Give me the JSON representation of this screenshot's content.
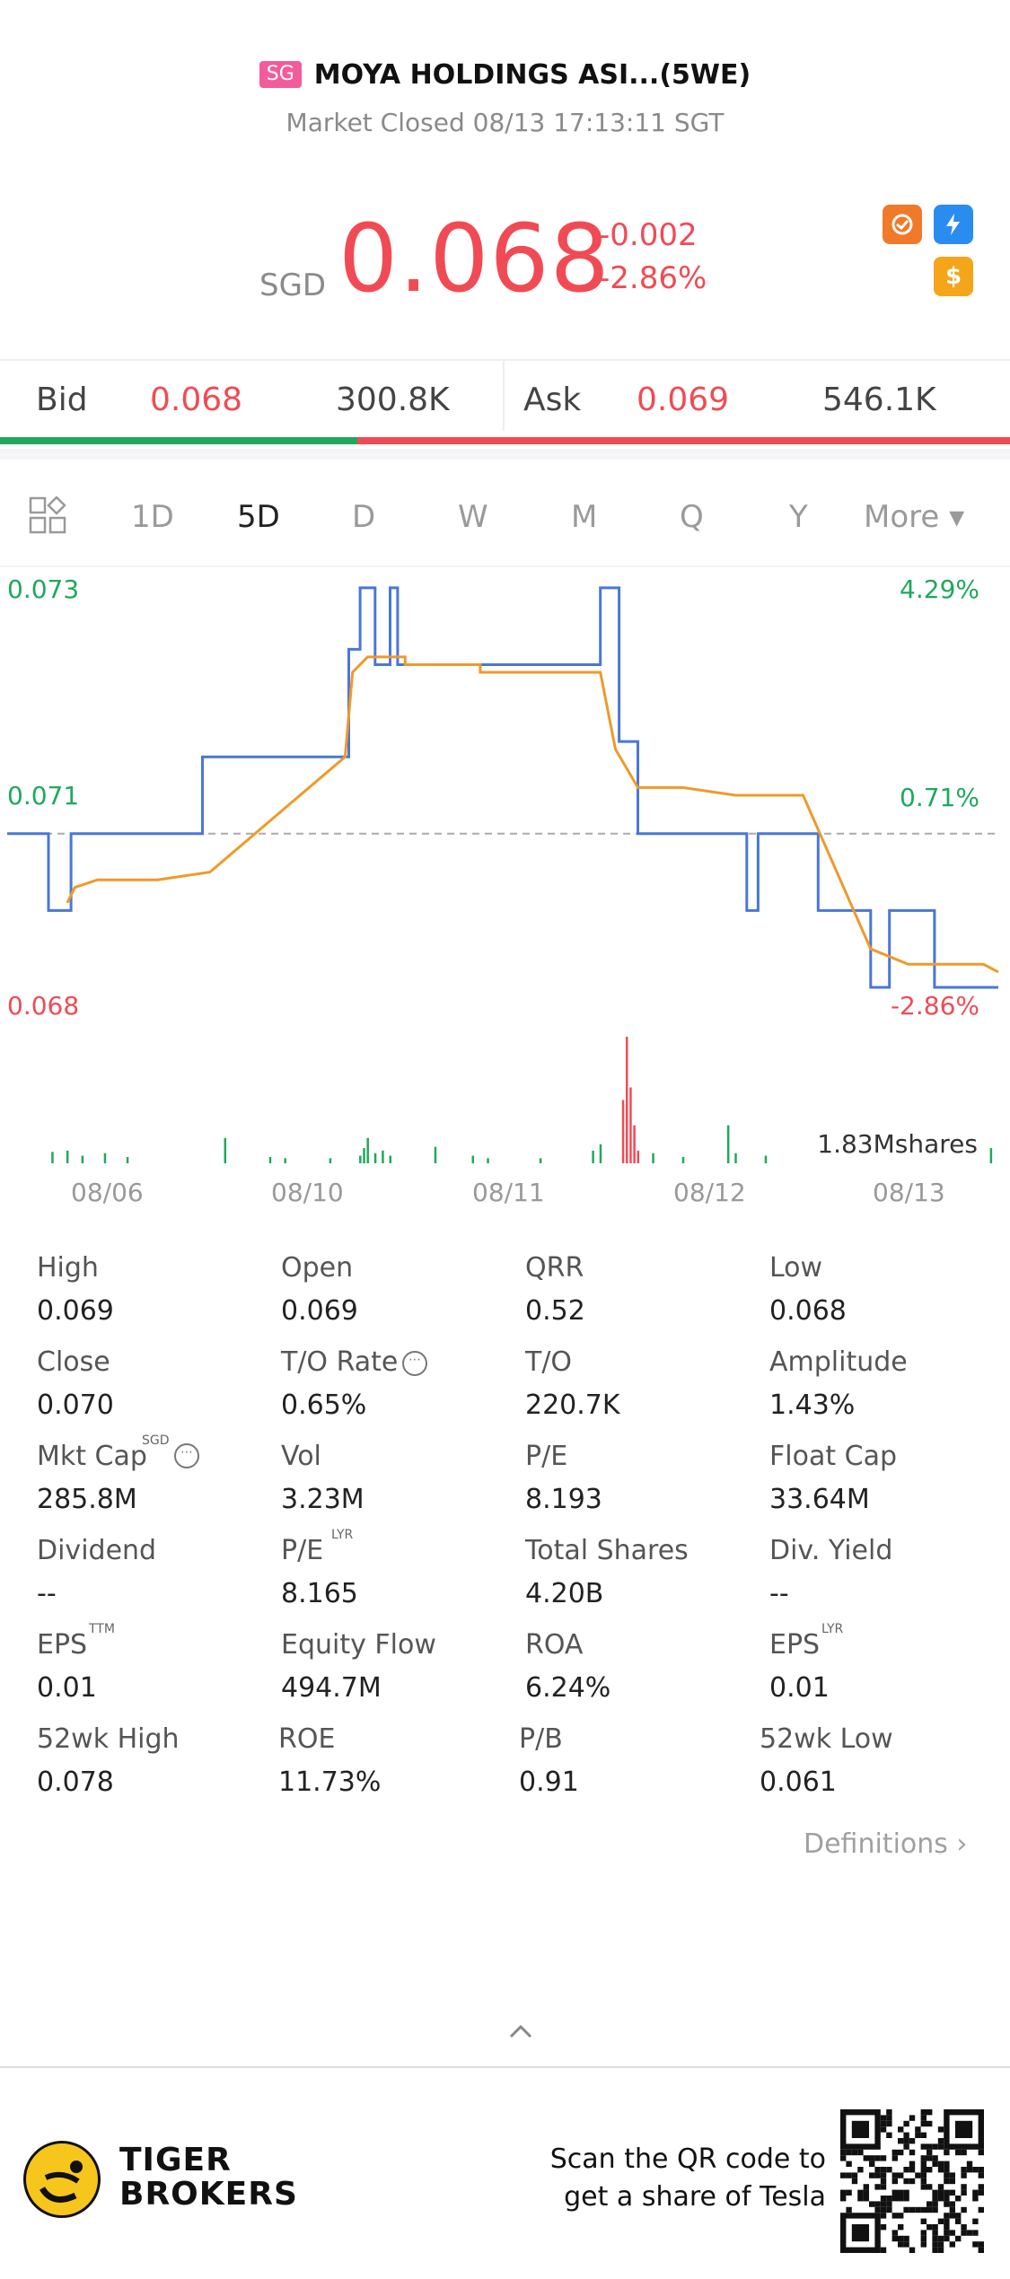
{
  "header": {
    "badge": "SG",
    "title": "MOYA HOLDINGS ASI...(5WE)",
    "status": "Market Closed 08/13 17:13:11 SGT"
  },
  "quote": {
    "currency": "SGD",
    "price": "0.068",
    "change": "-0.002",
    "change_pct": "-2.86%",
    "icons": [
      "sync-icon",
      "lightning-level1-icon",
      "dollar-icon"
    ]
  },
  "bidask": {
    "bid_label": "Bid",
    "bid_price": "0.068",
    "bid_size": "300.8K",
    "ask_label": "Ask",
    "ask_price": "0.069",
    "ask_size": "546.1K",
    "bid_share": 0.354
  },
  "tabs": [
    "1D",
    "5D",
    "D",
    "W",
    "M",
    "Q",
    "Y",
    "More ▾"
  ],
  "active_tab": "5D",
  "chart_data": {
    "type": "line",
    "y_labels": {
      "top": "0.073",
      "mid": "0.071",
      "bottom": "0.068"
    },
    "pct_labels": {
      "top": "4.29%",
      "mid": "0.71%",
      "bottom": "-2.86%"
    },
    "ylim": [
      0.068,
      0.073
    ],
    "prev_close": 0.07,
    "x_ticks": [
      "08/06",
      "08/10",
      "08/11",
      "08/12",
      "08/13"
    ],
    "volume_label": "1.83Mshares",
    "series": [
      {
        "color": "#4a76d8",
        "points": [
          [
            0,
            0.07
          ],
          [
            0.055,
            0.07
          ],
          [
            0.055,
            0.069
          ],
          [
            0.085,
            0.069
          ],
          [
            0.085,
            0.07
          ],
          [
            0.26,
            0.07
          ],
          [
            0.26,
            0.071
          ],
          [
            0.455,
            0.071
          ],
          [
            0.455,
            0.0724
          ],
          [
            0.47,
            0.0724
          ],
          [
            0.47,
            0.0732
          ],
          [
            0.49,
            0.0732
          ],
          [
            0.49,
            0.0722
          ],
          [
            0.51,
            0.0722
          ],
          [
            0.51,
            0.0732
          ],
          [
            0.52,
            0.0732
          ],
          [
            0.52,
            0.0722
          ],
          [
            0.79,
            0.0722
          ],
          [
            0.79,
            0.0732
          ],
          [
            0.815,
            0.0732
          ],
          [
            0.815,
            0.0712
          ],
          [
            0.84,
            0.0712
          ],
          [
            0.84,
            0.07
          ],
          [
            0.985,
            0.07
          ],
          [
            0.985,
            0.069
          ],
          [
            1.0,
            0.069
          ],
          [
            1.0,
            0.07
          ],
          [
            1.08,
            0.07
          ],
          [
            1.08,
            0.069
          ],
          [
            1.15,
            0.069
          ],
          [
            1.15,
            0.068
          ],
          [
            1.175,
            0.068
          ],
          [
            1.175,
            0.069
          ],
          [
            1.235,
            0.069
          ],
          [
            1.235,
            0.068
          ],
          [
            1.32,
            0.068
          ]
        ]
      },
      {
        "color": "#ee9a2a",
        "points": [
          [
            0.08,
            0.0691
          ],
          [
            0.09,
            0.0693
          ],
          [
            0.12,
            0.0694
          ],
          [
            0.2,
            0.0694
          ],
          [
            0.27,
            0.0695
          ],
          [
            0.45,
            0.071
          ],
          [
            0.46,
            0.0721
          ],
          [
            0.48,
            0.0723
          ],
          [
            0.53,
            0.0723
          ],
          [
            0.53,
            0.0722
          ],
          [
            0.63,
            0.0722
          ],
          [
            0.63,
            0.0721
          ],
          [
            0.79,
            0.0721
          ],
          [
            0.81,
            0.0711
          ],
          [
            0.84,
            0.0706
          ],
          [
            0.9,
            0.0706
          ],
          [
            0.97,
            0.0705
          ],
          [
            1.06,
            0.0705
          ],
          [
            1.15,
            0.0685
          ],
          [
            1.2,
            0.0683
          ],
          [
            1.25,
            0.0683
          ],
          [
            1.3,
            0.0683
          ],
          [
            1.32,
            0.0682
          ]
        ]
      }
    ],
    "volume_bars": [
      [
        0.06,
        0.09
      ],
      [
        0.08,
        0.1
      ],
      [
        0.1,
        0.06
      ],
      [
        0.13,
        0.08
      ],
      [
        0.16,
        0.05
      ],
      [
        0.29,
        0.2
      ],
      [
        0.35,
        0.05
      ],
      [
        0.37,
        0.04
      ],
      [
        0.43,
        0.04
      ],
      [
        0.47,
        0.06
      ],
      [
        0.475,
        0.12
      ],
      [
        0.48,
        0.2
      ],
      [
        0.49,
        0.08
      ],
      [
        0.5,
        0.1
      ],
      [
        0.51,
        0.06
      ],
      [
        0.57,
        0.13
      ],
      [
        0.62,
        0.06
      ],
      [
        0.64,
        0.04
      ],
      [
        0.71,
        0.04
      ],
      [
        0.78,
        0.1
      ],
      [
        0.79,
        0.15
      ],
      [
        0.82,
        0.5
      ],
      [
        0.825,
        1.0
      ],
      [
        0.83,
        0.6
      ],
      [
        0.835,
        0.3
      ],
      [
        0.84,
        0.1
      ],
      [
        0.86,
        0.08
      ],
      [
        0.9,
        0.05
      ],
      [
        0.96,
        0.3
      ],
      [
        0.97,
        0.08
      ],
      [
        1.01,
        0.06
      ],
      [
        1.31,
        0.12
      ]
    ]
  },
  "stats": [
    {
      "label": "High",
      "value": "0.069"
    },
    {
      "label": "Open",
      "value": "0.069"
    },
    {
      "label": "QRR",
      "value": "0.52"
    },
    {
      "label": "Low",
      "value": "0.068"
    },
    {
      "label": "Close",
      "value": "0.070"
    },
    {
      "label": "T/O Rate",
      "value": "0.65%"
    },
    {
      "label": "T/O",
      "value": "220.7K"
    },
    {
      "label": "Amplitude",
      "value": "1.43%"
    },
    {
      "label": "Mkt Cap",
      "value": "285.8M",
      "sup": "SGD"
    },
    {
      "label": "Vol",
      "value": "3.23M"
    },
    {
      "label": "P/E",
      "value": "8.193"
    },
    {
      "label": "Float Cap",
      "value": "33.64M"
    },
    {
      "label": "Dividend",
      "value": "--"
    },
    {
      "label": "P/E",
      "value": "8.165",
      "sup": "LYR"
    },
    {
      "label": "Total Shares",
      "value": "4.20B"
    },
    {
      "label": "Div. Yield",
      "value": "--"
    },
    {
      "label": "EPS",
      "value": "0.01",
      "sup": "TTM"
    },
    {
      "label": "Equity Flow",
      "value": "494.7M"
    },
    {
      "label": "ROA",
      "value": "6.24%"
    },
    {
      "label": "EPS",
      "value": "0.01",
      "sup": "LYR"
    },
    {
      "label": "52wk High",
      "value": "0.078"
    },
    {
      "label": "ROE",
      "value": "11.73%"
    },
    {
      "label": "P/B",
      "value": "0.91"
    },
    {
      "label": "52wk Low",
      "value": "0.061"
    }
  ],
  "definitions": "Definitions ›",
  "footer": {
    "brand_line1": "TIGER",
    "brand_line2": "BROKERS",
    "scan_line1": "Scan the QR code to",
    "scan_line2": "get a share of Tesla"
  }
}
